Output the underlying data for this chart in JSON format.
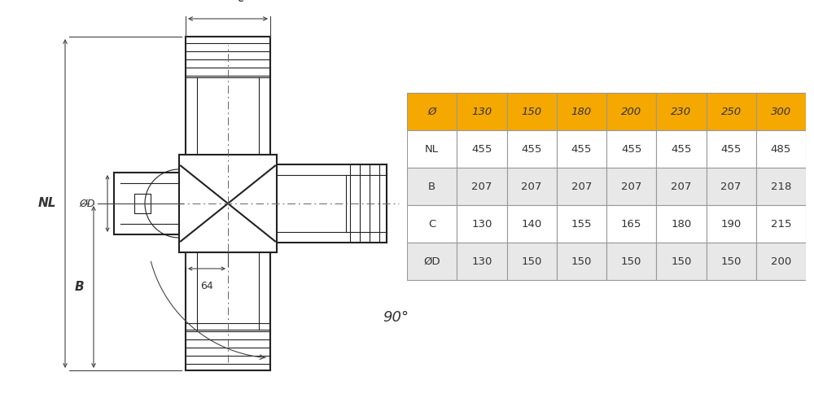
{
  "table_headers": [
    "Ø",
    "130",
    "150",
    "180",
    "200",
    "230",
    "250",
    "300"
  ],
  "table_rows": [
    [
      "NL",
      "455",
      "455",
      "455",
      "455",
      "455",
      "455",
      "485"
    ],
    [
      "B",
      "207",
      "207",
      "207",
      "207",
      "207",
      "207",
      "218"
    ],
    [
      "C",
      "130",
      "140",
      "155",
      "165",
      "180",
      "190",
      "215"
    ],
    [
      "ØD",
      "130",
      "150",
      "150",
      "150",
      "150",
      "150",
      "200"
    ]
  ],
  "header_bg": "#F5A800",
  "row_bg_light": "#E8E8E8",
  "row_bg_white": "#FFFFFF",
  "border_color": "#999999",
  "text_color": "#333333",
  "bg_color": "#FFFFFF",
  "lc": "#222222",
  "dc": "#444444"
}
